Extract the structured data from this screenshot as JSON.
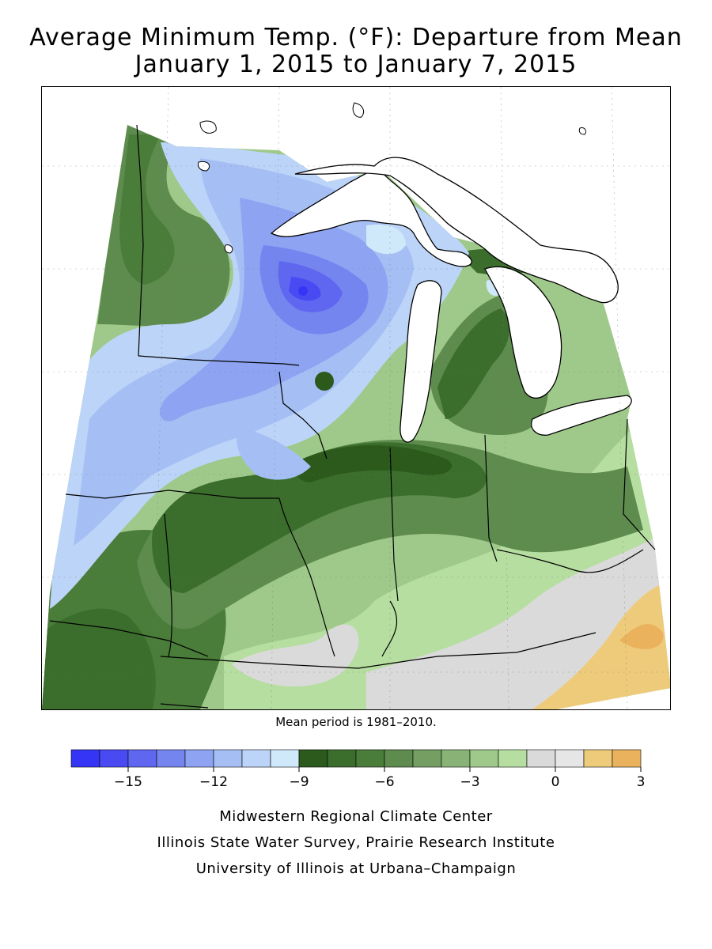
{
  "title": {
    "line1": "Average Minimum Temp. (°F): Departure from Mean",
    "line2": "January 1, 2015 to January 7, 2015"
  },
  "subtitle": "Mean period is 1981–2010.",
  "legend": {
    "colors": [
      "#3535f5",
      "#4a4af3",
      "#5f67f0",
      "#7585f0",
      "#8ea4f2",
      "#a5bff5",
      "#bcd4f8",
      "#cfe8fa",
      "#2b5a1c",
      "#3b6e2c",
      "#4a7c3a",
      "#5e8b4e",
      "#749e62",
      "#89b376",
      "#9fc98a",
      "#b5dea0",
      "#dadada",
      "#e6e6e6",
      "#eecb7a",
      "#eab25c"
    ],
    "ticks": [
      {
        "value": -15,
        "label": "−15"
      },
      {
        "value": -12,
        "label": "−12"
      },
      {
        "value": -9,
        "label": "−9"
      },
      {
        "value": -6,
        "label": "−6"
      },
      {
        "value": -3,
        "label": "−3"
      },
      {
        "value": 0,
        "label": "0"
      },
      {
        "value": 3,
        "label": "3"
      }
    ],
    "min": -17,
    "max": 3
  },
  "credits": {
    "line1": "Midwestern Regional Climate Center",
    "line2": "Illinois State Water Survey, Prairie Research Institute",
    "line3": "University of Illinois at Urbana–Champaign"
  }
}
